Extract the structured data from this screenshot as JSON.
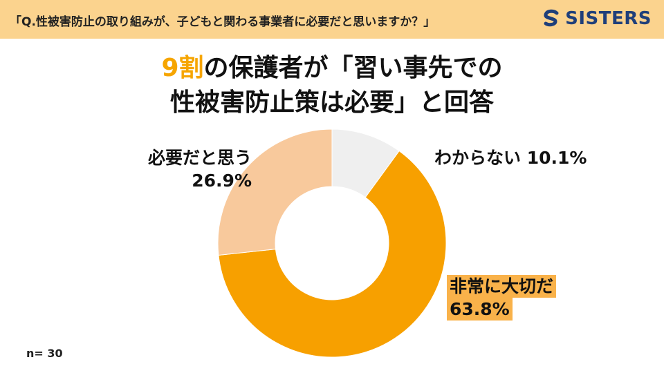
{
  "header": {
    "question": "「Q.性被害防止の取り組みが、子どもと関わる事業者に必要だと思いますか？」",
    "brand": "SISTERS",
    "brand_icon": "s-logo-icon",
    "background": "#fbd38e"
  },
  "title": {
    "line1_accent": "9割",
    "line1_rest": "の保護者が「習い事先での",
    "line2": "性被害防止策は必要」と回答"
  },
  "sample": "n= 30",
  "chart_data": {
    "type": "pie",
    "donut": true,
    "slices": [
      {
        "label": "わからない",
        "value": 10.1,
        "value_text": "10.1%",
        "color": "#efefef"
      },
      {
        "label": "非常に大切だ",
        "value": 63.8,
        "value_text": "63.8%",
        "color": "#f7a000"
      },
      {
        "label": "必要だと思う",
        "value": 26.9,
        "value_text": "26.9%",
        "color": "#f8c99c"
      }
    ]
  }
}
